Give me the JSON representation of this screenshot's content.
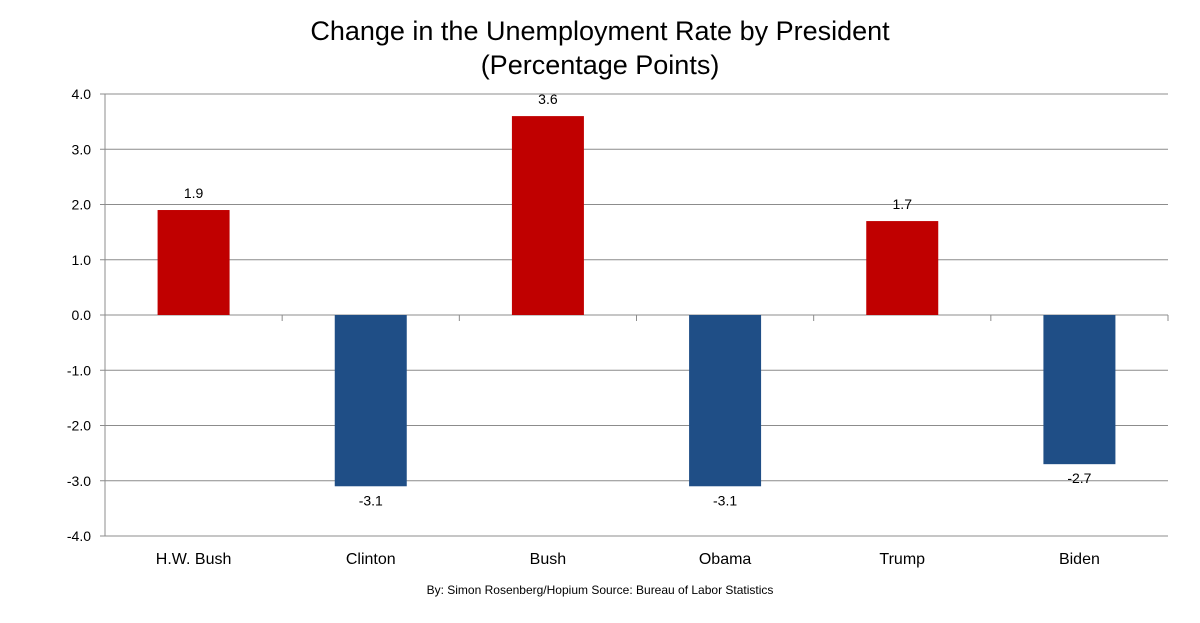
{
  "chart_data": {
    "type": "bar",
    "title_lines": [
      "Change in the Unemployment Rate by President",
      "(Percentage Points)"
    ],
    "categories": [
      "H.W. Bush",
      "Clinton",
      "Bush",
      "Obama",
      "Trump",
      "Biden"
    ],
    "values": [
      1.9,
      -3.1,
      3.6,
      -3.1,
      1.7,
      -2.7
    ],
    "value_labels": [
      "1.9",
      "-3.1",
      "3.6",
      "-3.1",
      "1.7",
      "-2.7"
    ],
    "ylim": [
      -4.0,
      4.0
    ],
    "yticks": [
      "4.0",
      "3.0",
      "2.0",
      "1.0",
      "0.0",
      "-1.0",
      "-2.0",
      "-3.0",
      "-4.0"
    ],
    "ytick_values": [
      4,
      3,
      2,
      1,
      0,
      -1,
      -2,
      -3,
      -4
    ],
    "grid": true,
    "legend": "none",
    "colors": {
      "positive": "#c00000",
      "negative": "#1f4e86",
      "grid": "#8c8c8c",
      "axis": "#8c8c8c"
    },
    "footer": "By: Simon Rosenberg/Hopium Source: Bureau of Labor Statistics"
  }
}
